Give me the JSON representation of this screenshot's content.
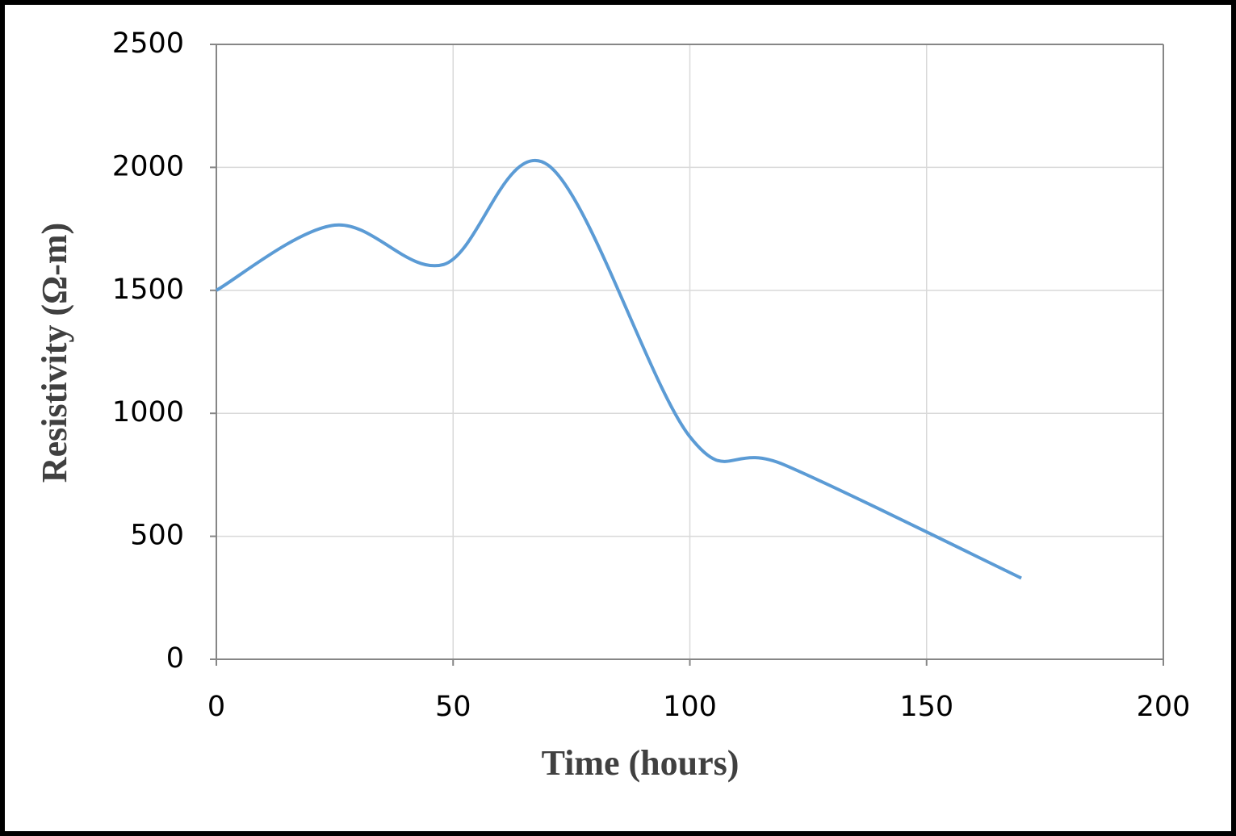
{
  "chart_data": {
    "type": "line",
    "x_label": "Time (hours)",
    "y_label": "Resistivity (Ω-m)",
    "x": [
      0,
      25,
      48,
      70,
      100,
      120,
      170
    ],
    "series": [
      {
        "color": "#5b9bd5",
        "values": [
          1500,
          1765,
          1605,
          2010,
          905,
          790,
          330
        ]
      }
    ],
    "xlim": [
      0,
      200
    ],
    "xticks": [
      0,
      50,
      100,
      150,
      200
    ],
    "ylim": [
      0,
      2500
    ],
    "yticks": [
      0,
      500,
      1000,
      1500,
      2000,
      2500
    ],
    "grid": true,
    "smooth": true
  }
}
